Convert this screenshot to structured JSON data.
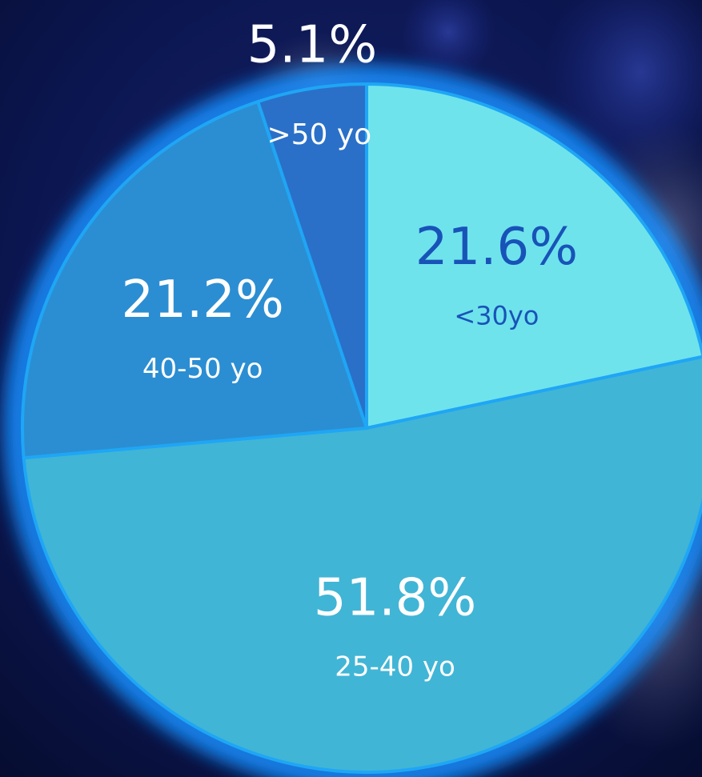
{
  "chart_data": {
    "type": "pie",
    "title": "",
    "slices": [
      {
        "label": "<30yo",
        "value": 21.6,
        "value_label": "21.6%",
        "color": "#6fe3ec",
        "text_color": "#1853b8"
      },
      {
        "label": "25-40 yo",
        "value": 51.8,
        "value_label": "51.8%",
        "color": "#41b5d6",
        "text_color": "#ffffff"
      },
      {
        "label": "40-50 yo",
        "value": 21.2,
        "value_label": "21.2%",
        "color": "#2b8ed2",
        "text_color": "#ffffff"
      },
      {
        "label": ">50 yo",
        "value": 5.1,
        "value_label": "5.1%",
        "color": "#2a70c8",
        "text_color": "#ffffff"
      }
    ],
    "start": "12 o'clock",
    "direction": "clockwise",
    "outline_color": "#1fa6f5",
    "glow_color": "#1f8fff"
  }
}
